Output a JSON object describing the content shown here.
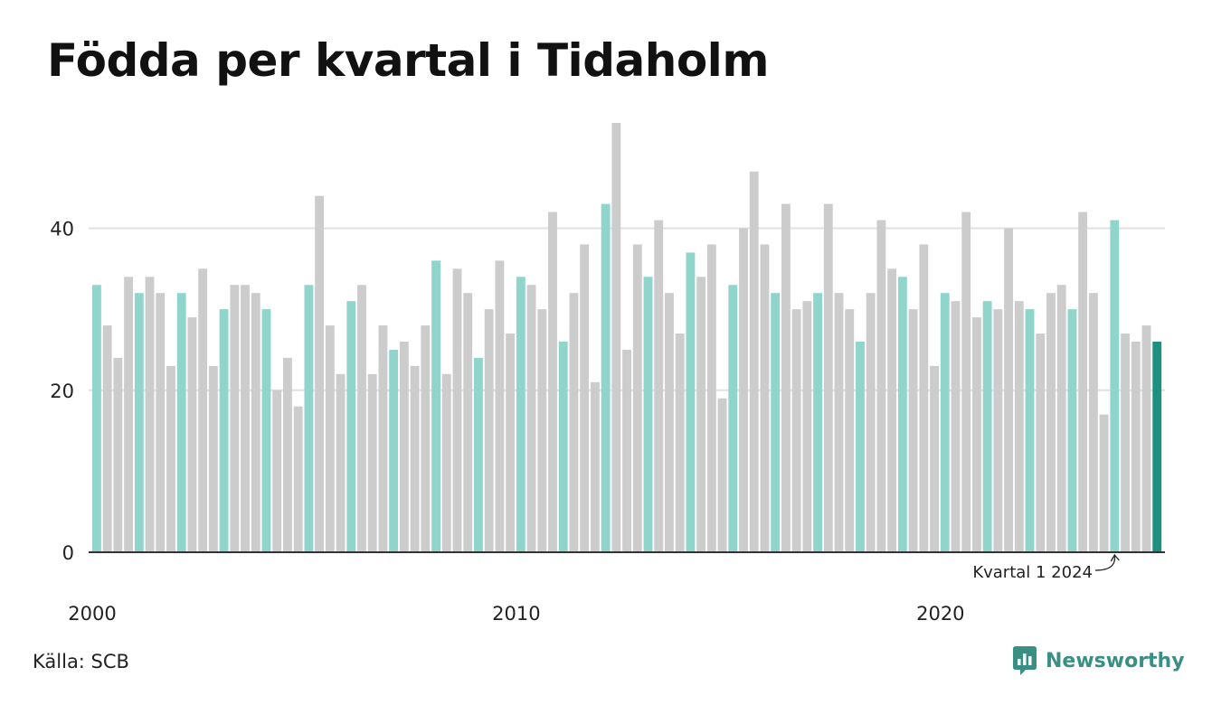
{
  "title": "Födda per kvartal i Tidaholm",
  "source": "Källa: SCB",
  "brand": {
    "name": "Newsworthy",
    "icon": "newsworthy-logo-icon",
    "color": "#3a8f84"
  },
  "colors": {
    "q1": "#8fd5cc",
    "other": "#cccccc",
    "latest": "#1e9080",
    "gridline": "#e0e0e0",
    "axis": "#333333"
  },
  "chart_data": {
    "type": "bar",
    "title": "Födda per kvartal i Tidaholm",
    "xlabel": "",
    "ylabel": "",
    "ylim": [
      0,
      53
    ],
    "yticks": [
      0,
      20,
      40
    ],
    "grid": true,
    "legend": "none",
    "x_tick_labels": [
      {
        "label": "2000",
        "index": 0
      },
      {
        "label": "2010",
        "index": 40
      },
      {
        "label": "2020",
        "index": 80
      }
    ],
    "start": {
      "year": 2000,
      "quarter": 1
    },
    "highlight_quarter": 1,
    "values": [
      33,
      28,
      24,
      34,
      32,
      34,
      32,
      23,
      32,
      29,
      35,
      23,
      30,
      33,
      33,
      32,
      30,
      20,
      24,
      18,
      33,
      44,
      28,
      22,
      31,
      33,
      22,
      28,
      25,
      26,
      23,
      28,
      36,
      22,
      35,
      32,
      24,
      30,
      36,
      27,
      34,
      33,
      30,
      42,
      26,
      32,
      38,
      21,
      43,
      53,
      25,
      38,
      34,
      41,
      32,
      27,
      37,
      34,
      38,
      19,
      33,
      40,
      47,
      38,
      32,
      43,
      30,
      31,
      32,
      43,
      32,
      30,
      26,
      32,
      41,
      35,
      34,
      30,
      38,
      23,
      32,
      31,
      42,
      29,
      31,
      30,
      40,
      31,
      30,
      27,
      32,
      33,
      30,
      42,
      32,
      17,
      41,
      27,
      26,
      28,
      26
    ],
    "annotation": {
      "text": "Kvartal 1 2024",
      "target_index": 96
    }
  }
}
